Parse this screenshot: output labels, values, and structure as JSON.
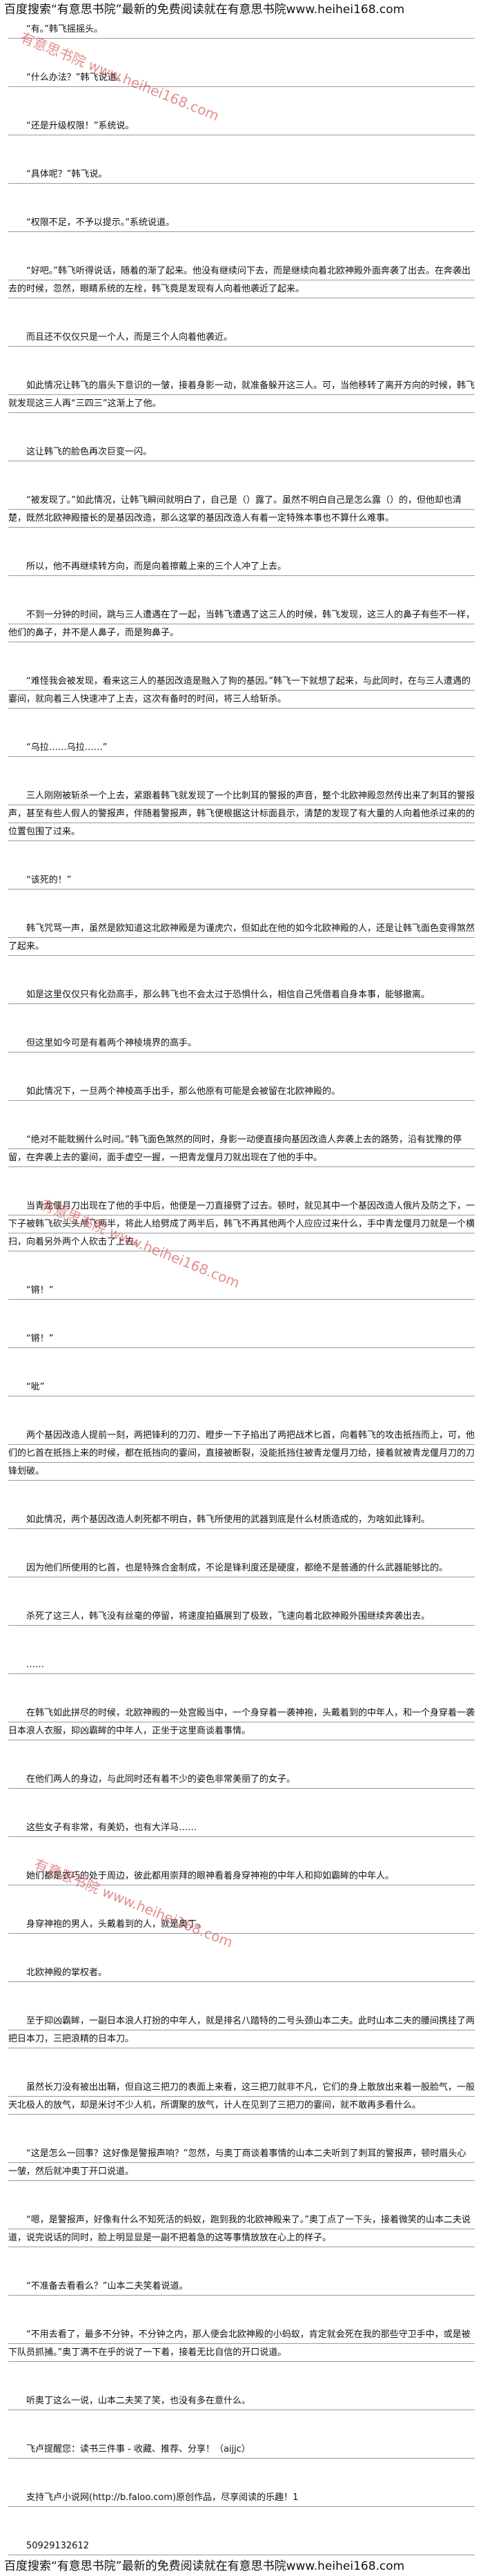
{
  "header": {
    "text": "百度搜索“有意思书院”最新的免费阅读就在有意思书院www.heihei168.com"
  },
  "paragraphs": [
    "“有。”韩飞摇摇头。",
    "“什么办法？”韩飞说道。",
    "“还是升级权限！”系统说。",
    "“具体呢？”韩飞说。",
    "“权限不足，不予以提示。”系统说道。",
    "“好吧。”韩飞听得说话，随着的渐了起来。他没有继续问下去，而是继续向着北欧神殿外面奔袭了出去。在奔袭出去的时候，忽然，眼睛系统的左栓，韩飞竟是发现有人向着他袭近了起来。",
    "而且还不仅仅只是一个人，而是三个人向着他袭近。",
    "如此情况让韩飞的眉头下意识的一皱，接着身影一动，就准备躲开这三人。可，当他移转了离开方向的时候，韩飞就发现这三人再“三四三”这渐上了他。",
    "这让韩飞的脸色再次巨变一闪。",
    "“被发现了。”如此情况，让韩飞瞬间就明白了，自己是（）露了。虽然不明白自己是怎么露（）的，但他却也清楚，既然北欧神殿擅长的是基因改造，那么这掌的基因改造人有着一定特殊本事也不算什么难事。",
    "所以，他不再继续转方向，而是向着擦戴上来的三个人冲了上去。",
    "不到一分钟的时间，跳与三人遭遇在了一起，当韩飞遭遇了这三人的时候，韩飞发现，这三人的鼻子有些不一样，他们的鼻子，并不是人鼻子，而是狗鼻子。",
    "“难怪我会被发现，看来这三人的基因改造是融入了狗的基因。”韩飞一下就想了起来，与此同时，在与三人遭遇的霎间，就向着三人快速冲了上去，这次有备时的时间，将三人给斩杀。",
    "“乌拉……乌拉……”",
    "三人刚刚被斩杀一个上去，紧跟着韩飞就发现了一个比刺耳的警报的声音，整个北欧神殿忽然传出来了刺耳的警报声，甚至有些人假人的警报声，伴随着警报声，韩飞便根据这计标面县示，清楚的发现了有大量的人向着他杀过来的的位置包围了过来。",
    "“该死的！”",
    "韩飞咒骂一声，虽然是欧知道这北欧神殿是为谨虎穴，但如此在他的如今北欧神殿的人，还是让韩飞面色变得煞然了起来。",
    "如是这里仅仅只有化劲高手，那么韩飞也不会太过于恐惧什么，相信自己凭借着自身本事，能够撤离。",
    "但这里如今可是有着两个神棱境界的高手。",
    "如此情况下，一旦两个神棱高手出手，那么他原有可能是会被留在北欧神殿的。",
    "“绝对不能耽搁什么时间。”韩飞面色煞然的同时，身影一动便直接向基因改造人奔袭上去的路势，沿有犹豫的停留，在奔袭上去的霎间，面手虚空一握，一把青龙偃月刀就出现在了他的手中。",
    "当青龙偃月刀出现在了他的手中后，他便是一刀直接劈了过去。顿时，就见其中一个基因改造人俄片及防之下，一下子被韩飞砍头头颅飞两半，将此人给劈成了两半后，韩飞不再其他两个人应应过来什么，手中青龙偃月刀就是一个横扫，向着另外两个人砍击了上去。",
    "“锵！”",
    "“锵！”",
    "“呲”",
    "两个基因改造人提前一刻，两把锋利的刀刃、瞪步一下子掐出了两把战术匕首，向着韩飞的攻击抵挡而上，可，他们的匕首在抵挡上来的时候，都在抵挡向的霎间，直接被断裂，没能抵挡住被青龙偃月刀给，接着就被青龙偃月刀的刀锋划破。",
    "如此情况，两个基因改造人刺死都不明白，韩飞所使用的武器到底是什么材质造成的，为啥如此锋利。",
    "因为他们所使用的匕首，也是特殊合金制成，不论是锋利度还是硬度，都绝不是普通的什么武器能够比的。",
    "杀死了这三人，韩飞没有丝毫的停留，将速度拍攝展到了极致，飞速向着北欧神殿外围继续奔袭出去。",
    "……",
    "在韩飞如此拼尽的时候，北欧神殿的一处宫殿当中，一个身穿着一袭神袍，头戴着到的中年人，和一个身穿着一袭日本浪人衣服，抑凶霸眸的中年人，正坐于这里商谈着事情。",
    "在他们两人的身边，与此同时还有着不少的姿色非常美丽了的女子。",
    "这些女子有非常，有美奶，也有大洋马……",
    "她们都是衣巧的处于周边，彼此都用崇拜的眼神看着身穿神袍的中年人和抑如霸眸的中年人。",
    "身穿神袍的男人，头戴着到的人，就是奥丁。",
    "北欧神殿的掌权者。",
    "至于抑凶霸眸，一副日本浪人打扮的中年人，就是排名八踏特的二号头颈山本二夫。此时山本二夫的腰间携挂了两把日本刀，三把浪精的日本刀。",
    "虽然长刀没有被出出鞘，但自这三把刀的表面上来看，这三把刀就非不凡，它们的身上散放出来着一股脸气，一般天北极人的放气，却是米讨不少人机，所谓聚的放气，计人在见到了三把刀的霎间，就不敢再多看什么。",
    "“这是怎么一回事？这好像是警报声响？”忽然，与奥丁商谈着事情的山本二夫听到了刺耳的警报声，顿时眉头心一皱，然后就冲奥丁开口说道。",
    "“嗯，是警报声，好像有什么不知死活的蚂蚁，跑到我的北欧神殿来了。”奥丁点了一下头，接着微笑的山本二夫说道，说完说话的同时，脸上明显显是一副不把着急的这等事情放放在心上的样子。",
    "“不准备去看看么？”山本二夫笑着说道。",
    "“不用去看了，最多不分钟，不分钟之内，那人便会北欧神殿的小蚂蚁，肯定就会死在我的那些守卫手中，或是被下队员抓捕。”奥丁满不在乎的说了一下着，接着无比自信的开口说道。",
    "听奥丁这么一说，山本二夫笑了笑，也没有多在意什么。",
    "飞卢提醒您：读书三件事 - 收藏、推荐、分享！（aijjc）",
    "支持飞卢小说网(http://b.faloo.com)原创作品，尽享阅读的乐趣！1",
    "50929132612"
  ],
  "watermarks": [
    "有意思书院 www.heihei168.com",
    "有意思书院 www.heihei168.com",
    "有意思书院 www.heihei168.com"
  ],
  "footer": {
    "text": "百度搜索“有意思书院”最新的免费阅读就在有意思书院www.heihei168.com"
  }
}
